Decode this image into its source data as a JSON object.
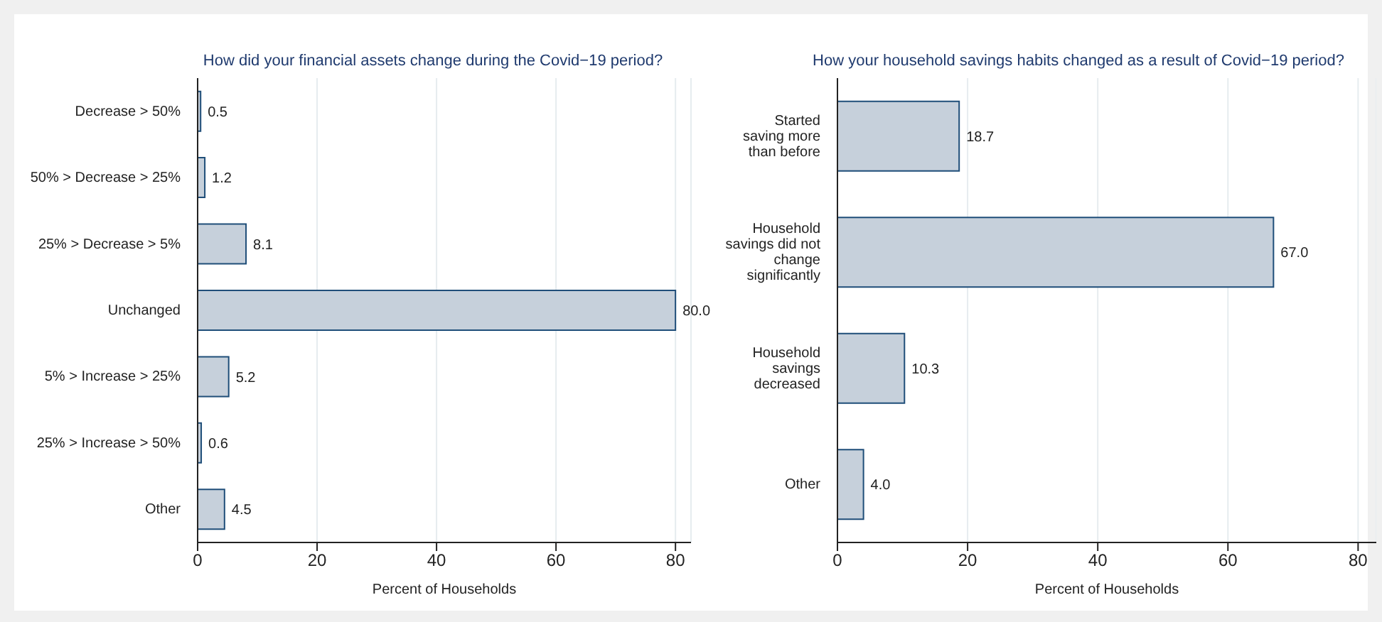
{
  "chart_data": [
    {
      "type": "bar",
      "orientation": "horizontal",
      "title": "How did your financial assets change during the Covid−19 period?",
      "xlabel": "Percent of Households",
      "categories": [
        "Decrease > 50%",
        "50% > Decrease > 25%",
        "25% > Decrease > 5%",
        "Unchanged",
        "5% > Increase > 25%",
        "25% > Increase > 50%",
        "Other"
      ],
      "values": [
        0.5,
        1.2,
        8.1,
        80.0,
        5.2,
        0.6,
        4.5
      ],
      "value_labels": [
        "0.5",
        "1.2",
        "8.1",
        "80.0",
        "5.2",
        "0.6",
        "4.5"
      ],
      "color": "#c6d0db",
      "xlim": [
        0,
        82.6
      ],
      "xticks": [
        0,
        20,
        40,
        60,
        80
      ],
      "grid": "x"
    },
    {
      "type": "bar",
      "orientation": "horizontal",
      "title": "How your household savings habits changed as a result of Covid−19 period?",
      "xlabel": "Percent of Households",
      "categories": [
        "Started\nsaving more\nthan before",
        "Household\nsavings did not\nchange\nsignificantly",
        "Household\nsavings\ndecreased",
        "Other"
      ],
      "values": [
        18.7,
        67.0,
        10.3,
        4.0
      ],
      "value_labels": [
        "18.7",
        "67.0",
        "10.3",
        "4.0"
      ],
      "color": "#c6d0db",
      "xlim": [
        0,
        82.8
      ],
      "xticks": [
        0,
        20,
        40,
        60,
        80
      ],
      "grid": "x"
    }
  ]
}
